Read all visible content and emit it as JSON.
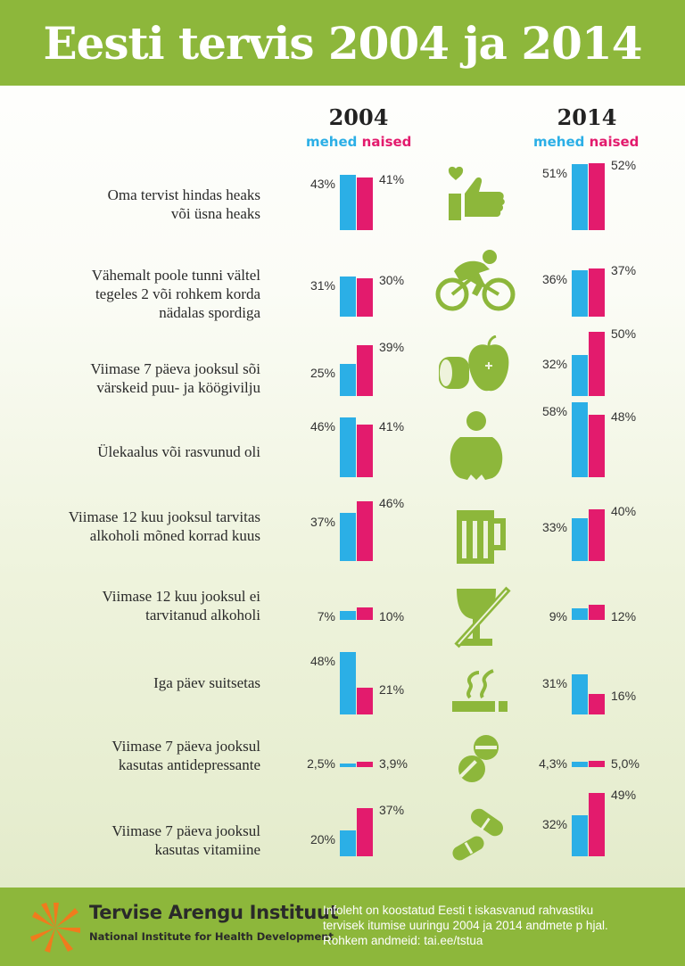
{
  "title": "Eesti tervis 2004 ja 2014",
  "chart_data": {
    "type": "bar",
    "years": [
      "2004",
      "2014"
    ],
    "series_labels": [
      "mehed",
      "naised"
    ],
    "colors": {
      "mehed": "#2bafe6",
      "naised": "#e31b6d",
      "accent": "#8db73b"
    },
    "rows": [
      {
        "label_lines": [
          "Oma tervist hindas heaks",
          "või üsna heaks"
        ],
        "icon": "thumbs-up-heart-icon",
        "y2004": {
          "mehed": 43,
          "naised": 41,
          "mehed_label": "43%",
          "naised_label": "41%"
        },
        "y2014": {
          "mehed": 51,
          "naised": 52,
          "mehed_label": "51%",
          "naised_label": "52%"
        }
      },
      {
        "label_lines": [
          "Vähemalt poole tunni vältel",
          "tegeles 2 või rohkem korda",
          "nädalas spordiga"
        ],
        "icon": "cyclist-icon",
        "y2004": {
          "mehed": 31,
          "naised": 30,
          "mehed_label": "31%",
          "naised_label": "30%"
        },
        "y2014": {
          "mehed": 36,
          "naised": 37,
          "mehed_label": "36%",
          "naised_label": "37%"
        }
      },
      {
        "label_lines": [
          "Viimase 7 päeva jooksul sõi",
          "värskeid puu- ja köögivilju"
        ],
        "icon": "apple-vegetable-icon",
        "y2004": {
          "mehed": 25,
          "naised": 39,
          "mehed_label": "25%",
          "naised_label": "39%"
        },
        "y2014": {
          "mehed": 32,
          "naised": 50,
          "mehed_label": "32%",
          "naised_label": "50%"
        }
      },
      {
        "label_lines": [
          "Ülekaalus või rasvunud oli"
        ],
        "icon": "overweight-person-icon",
        "y2004": {
          "mehed": 46,
          "naised": 41,
          "mehed_label": "46%",
          "naised_label": "41%"
        },
        "y2014": {
          "mehed": 58,
          "naised": 48,
          "mehed_label": "58%",
          "naised_label": "48%"
        }
      },
      {
        "label_lines": [
          "Viimase 12 kuu jooksul tarvitas",
          "alkoholi mõned korrad kuus"
        ],
        "icon": "beer-mug-icon",
        "y2004": {
          "mehed": 37,
          "naised": 46,
          "mehed_label": "37%",
          "naised_label": "46%"
        },
        "y2014": {
          "mehed": 33,
          "naised": 40,
          "mehed_label": "33%",
          "naised_label": "40%"
        }
      },
      {
        "label_lines": [
          "Viimase 12 kuu jooksul ei",
          "tarvitanud alkoholi"
        ],
        "icon": "no-alcohol-glass-icon",
        "y2004": {
          "mehed": 7,
          "naised": 10,
          "mehed_label": "7%",
          "naised_label": "10%"
        },
        "y2014": {
          "mehed": 9,
          "naised": 12,
          "mehed_label": "9%",
          "naised_label": "12%"
        }
      },
      {
        "label_lines": [
          "Iga päev suitsetas"
        ],
        "icon": "cigarette-icon",
        "y2004": {
          "mehed": 48,
          "naised": 21,
          "mehed_label": "48%",
          "naised_label": "21%"
        },
        "y2014": {
          "mehed": 31,
          "naised": 16,
          "mehed_label": "31%",
          "naised_label": "16%"
        }
      },
      {
        "label_lines": [
          "Viimase 7 päeva jooksul",
          "kasutas antidepressante"
        ],
        "icon": "pills-icon",
        "y2004": {
          "mehed": 2.5,
          "naised": 3.9,
          "mehed_label": "2,5%",
          "naised_label": "3,9%"
        },
        "y2014": {
          "mehed": 4.3,
          "naised": 5.0,
          "mehed_label": "4,3%",
          "naised_label": "5,0%"
        }
      },
      {
        "label_lines": [
          "Viimase 7 päeva jooksul",
          "kasutas vitamiine"
        ],
        "icon": "capsules-icon",
        "y2004": {
          "mehed": 20,
          "naised": 37,
          "mehed_label": "20%",
          "naised_label": "37%"
        },
        "y2014": {
          "mehed": 32,
          "naised": 49,
          "mehed_label": "32%",
          "naised_label": "49%"
        }
      }
    ]
  },
  "footer": {
    "org_name": "Tervise Arengu Instituut",
    "org_name_en": "National Institute for Health Development",
    "logo_icon": "sun-rays-logo-icon",
    "note_lines": [
      "Infoleht on koostatud Eesti t  iskasvanud rahvastiku",
      "tervisek  itumise uuringu 2004 ja 2014 andmete p  hjal.",
      "Rohkem andmeid: tai.ee/tstua"
    ]
  }
}
